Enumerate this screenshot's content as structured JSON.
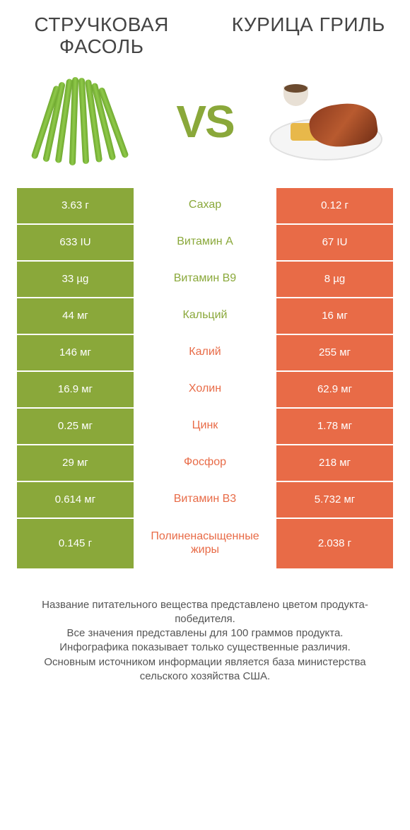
{
  "left_title": "СТРУЧКОВАЯ ФАСОЛЬ",
  "right_title": "КУРИЦА ГРИЛЬ",
  "vs_label": "VS",
  "colors": {
    "green": "#8aa83a",
    "orange": "#e86b47",
    "green_class": "color-green",
    "orange_class": "color-orange"
  },
  "rows": [
    {
      "left": "3.63 г",
      "label": "Сахар",
      "right": "0.12 г",
      "winner": "green"
    },
    {
      "left": "633 IU",
      "label": "Витамин A",
      "right": "67 IU",
      "winner": "green"
    },
    {
      "left": "33 µg",
      "label": "Витамин B9",
      "right": "8 µg",
      "winner": "green"
    },
    {
      "left": "44 мг",
      "label": "Кальций",
      "right": "16 мг",
      "winner": "green"
    },
    {
      "left": "146 мг",
      "label": "Калий",
      "right": "255 мг",
      "winner": "orange"
    },
    {
      "left": "16.9 мг",
      "label": "Холин",
      "right": "62.9 мг",
      "winner": "orange"
    },
    {
      "left": "0.25 мг",
      "label": "Цинк",
      "right": "1.78 мг",
      "winner": "orange"
    },
    {
      "left": "29 мг",
      "label": "Фосфор",
      "right": "218 мг",
      "winner": "orange"
    },
    {
      "left": "0.614 мг",
      "label": "Витамин B3",
      "right": "5.732 мг",
      "winner": "orange"
    },
    {
      "left": "0.145 г",
      "label": "Полиненасыщенные жиры",
      "right": "2.038 г",
      "winner": "orange"
    }
  ],
  "footnote": "Название питательного вещества представлено цветом продукта-победителя.\nВсе значения представлены для 100 граммов продукта.\nИнфографика показывает только существенные различия.\nОсновным источником информации является база министерства сельского хозяйства США."
}
